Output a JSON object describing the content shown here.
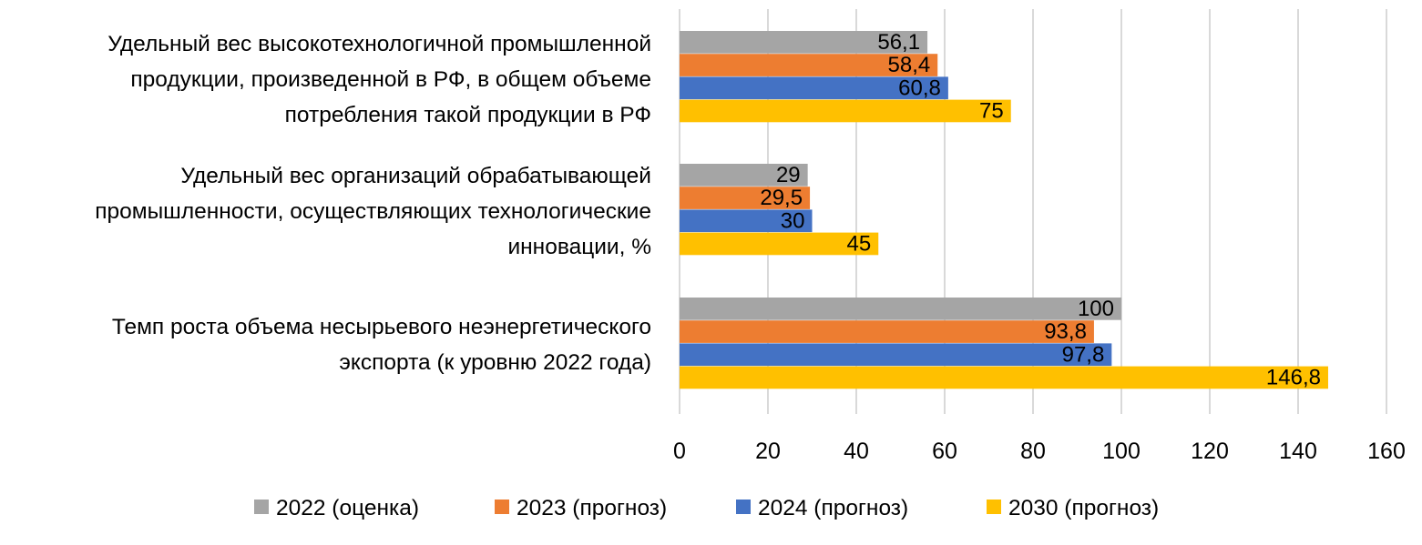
{
  "chart_data": {
    "type": "bar",
    "orientation": "horizontal",
    "title": "",
    "xlabel": "",
    "ylabel": "",
    "xlim": [
      0,
      160
    ],
    "x_ticks": [
      "0",
      "20",
      "40",
      "60",
      "80",
      "100",
      "120",
      "140",
      "160"
    ],
    "grid": true,
    "legend_position": "bottom",
    "categories": [
      [
        "Удельный вес высокотехнологичной промышленной",
        "продукции, произведенной в РФ, в общем объеме",
        "потребления такой продукции в РФ"
      ],
      [
        "Удельный вес организаций обрабатывающей",
        "промышленности, осуществляющих технологические",
        "инновации, %"
      ],
      [
        "Темп роста объема несырьевого неэнергетического",
        "экспорта (к уровню 2022 года)"
      ]
    ],
    "series": [
      {
        "name": "2022 (оценка)",
        "color": "#A5A5A5",
        "values": [
          56.1,
          29,
          100
        ],
        "labels": [
          "56,1",
          "29",
          "100"
        ]
      },
      {
        "name": "2023 (прогноз)",
        "color": "#ED7D31",
        "values": [
          58.4,
          29.5,
          93.8
        ],
        "labels": [
          "58,4",
          "29,5",
          "93,8"
        ]
      },
      {
        "name": "2024 (прогноз)",
        "color": "#4472C4",
        "values": [
          60.8,
          30,
          97.8
        ],
        "labels": [
          "60,8",
          "30",
          "97,8"
        ]
      },
      {
        "name": "2030 (прогноз)",
        "color": "#FFC000",
        "values": [
          75,
          45,
          146.8
        ],
        "labels": [
          "75",
          "45",
          "146,8"
        ]
      }
    ]
  }
}
